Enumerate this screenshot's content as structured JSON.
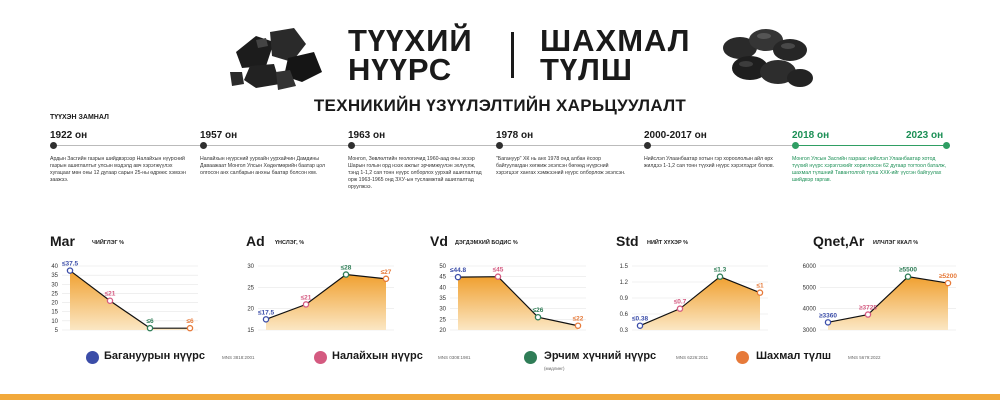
{
  "header": {
    "title_left_line1": "ТҮҮХИЙ",
    "title_left_line2": "НҮҮРС",
    "title_right_line1": "ШАХМАЛ",
    "title_right_line2": "ТҮЛШ",
    "subtitle": "ТЕХНИКИЙН ҮЗҮҮЛЭЛТИЙН ХАРЬЦУУЛАЛТ"
  },
  "timeline": {
    "heading": "ТҮҮХЭН ЗАМНАЛ",
    "events": [
      {
        "year": "1922 он",
        "text": "Ардын Засгийн газрын шийдвэрээр Налайхын нүүрсний газрын ашиглалтыг улсын мэдэлд авч хэрэгжүүлэх хугацааг мөн оны 12 дугаар сарын 25-ны өдрөөс хэмээн заажээ."
      },
      {
        "year": "1957 он",
        "text": "Налайхын нүүрсний уурхайн уурхайчин Дамдины Даваажаат Монгол Улсын Хөдөлмөрийн баатар цол олгосон анх салбарын анхны баатар болсон юм."
      },
      {
        "year": "1963 он",
        "text": "Монгол, Зөвлөлтийн геологичид 1960-аад оны эхээр Шарын голын орд нээх ажлыг эрчимжүүлэн эхлүүлж, тэнд 1-1,2 сая тонн нүүрс олборлох уурхай ашиглалтад орж 1963-1965 онд ЗХУ-ын тусламжтай ашиглалтад оруулжээ."
      },
      {
        "year": "1978 он",
        "text": "\"Багануур\" ХК нь анх 1978 онд албан ёсоор байгуулагдан хөгжиж эхэлсэн бөгөөд нүүрсний хэрэгцээг хангах хэмжээний нүүрс олборлож эхэлсэн."
      },
      {
        "year": "2000-2017 он",
        "text": "Нийслэл Улаанбаатар хотын гэр хороололын айл өрх жилдээ 1-1,2 сая тонн түүхий нүүрс хэрэглэдэг болов."
      },
      {
        "year_start": "2018 он",
        "year_end": "2023 он",
        "text": "Монгол Улсын Засгийн газраас нийслэл Улаанбаатар хотод түүхий нүүрс хэрэглэхийг хориглосон 62 дугаар тогтоол баталж, шахмал түлшний Тавантолгой түлш ХХК-ийг үүсгэн байгуулах шийдвэр гаргав."
      }
    ]
  },
  "charts": [
    {
      "title": "Mar",
      "subtitle": "ЧИЙГЛЭГ %"
    },
    {
      "title": "Ad",
      "subtitle": "ҮНСЛЭГ, %"
    },
    {
      "title": "Vd",
      "subtitle": "ДЭГДЭМХИЙ БОДИС %"
    },
    {
      "title": "Std",
      "subtitle": "НИЙТ ХҮХЭР %"
    },
    {
      "title": "Qnet,Ar",
      "subtitle": "ИЛЧЛЭГ ККАЛ %"
    }
  ],
  "chart_data": [
    {
      "type": "area",
      "title": "Mar",
      "ylabel": "ЧИЙГЛЭГ %",
      "ylim": [
        5,
        40
      ],
      "yticks": [
        5,
        10,
        15,
        20,
        25,
        30,
        35,
        40
      ],
      "categories": [
        "Багануурын нүүрс",
        "Налайхын нүүрс",
        "Эрчим хүчний нүүрс",
        "Шахмал түлш"
      ],
      "values": [
        37.5,
        21,
        6,
        6
      ],
      "labels": [
        "≤37.5",
        "≤21",
        "≤6",
        "≤6"
      ]
    },
    {
      "type": "area",
      "title": "Ad",
      "ylabel": "ҮНСЛЭГ, %",
      "ylim": [
        15,
        30
      ],
      "yticks": [
        15,
        20,
        25,
        30
      ],
      "categories": [
        "Багануурын нүүрс",
        "Налайхын нүүрс",
        "Эрчим хүчний нүүрс",
        "Шахмал түлш"
      ],
      "values": [
        17.5,
        21,
        28,
        27
      ],
      "labels": [
        "≤17.5",
        "≤21",
        "≤28",
        "≤27"
      ]
    },
    {
      "type": "area",
      "title": "Vd",
      "ylabel": "ДЭГДЭМХИЙ БОДИС %",
      "ylim": [
        20,
        50
      ],
      "yticks": [
        20,
        25,
        30,
        35,
        40,
        45,
        50
      ],
      "categories": [
        "Багануурын нүүрс",
        "Налайхын нүүрс",
        "Эрчим хүчний нүүрс",
        "Шахмал түлш"
      ],
      "values": [
        44.8,
        45,
        26,
        22
      ],
      "labels": [
        "≤44.8",
        "≤45",
        "≤26",
        "≤22"
      ]
    },
    {
      "type": "area",
      "title": "Std",
      "ylabel": "НИЙТ ХҮХЭР %",
      "ylim": [
        0.3,
        1.5
      ],
      "yticks": [
        0.3,
        0.6,
        0.9,
        1.2,
        1.5
      ],
      "categories": [
        "Багануурын нүүрс",
        "Налайхын нүүрс",
        "Эрчим хүчний нүүрс",
        "Шахмал түлш"
      ],
      "values": [
        0.38,
        0.7,
        1.3,
        1.0
      ],
      "labels": [
        "≤0.38",
        "≤0.7",
        "≤1.3",
        "≤1"
      ]
    },
    {
      "type": "area",
      "title": "Qnet,Ar",
      "ylabel": "ИЛЧЛЭГ ККАЛ %",
      "ylim": [
        3000,
        6000
      ],
      "yticks": [
        3000,
        4000,
        5000,
        6000
      ],
      "categories": [
        "Багануурын нүүрс",
        "Налайхын нүүрс",
        "Эрчим хүчний нүүрс",
        "Шахмал түлш"
      ],
      "values": [
        3360,
        3725,
        5500,
        5200
      ],
      "labels": [
        "≥3360",
        "≥3725",
        "≥5500",
        "≥5200"
      ]
    }
  ],
  "legend": [
    {
      "label": "Багануурын нүүрс",
      "standard": "MNS 3818:2001",
      "color": "#3b4da8"
    },
    {
      "label": "Налайхын нүүрс",
      "standard": "MNS 0308:1981",
      "color": "#d45a80"
    },
    {
      "label": "Эрчим хүчний нүүрс",
      "standard": "MNS 6226:2011",
      "extra": "(мидлинг)",
      "color": "#2f7d57"
    },
    {
      "label": "Шахмал түлш",
      "standard": "MNS 5679:2022",
      "color": "#e67a3a"
    }
  ],
  "colors": {
    "area_top": "#f0a030",
    "area_bottom": "#fbe7c4",
    "accent_green": "#1b8f55",
    "bottom_bar": "#f2a93b"
  }
}
